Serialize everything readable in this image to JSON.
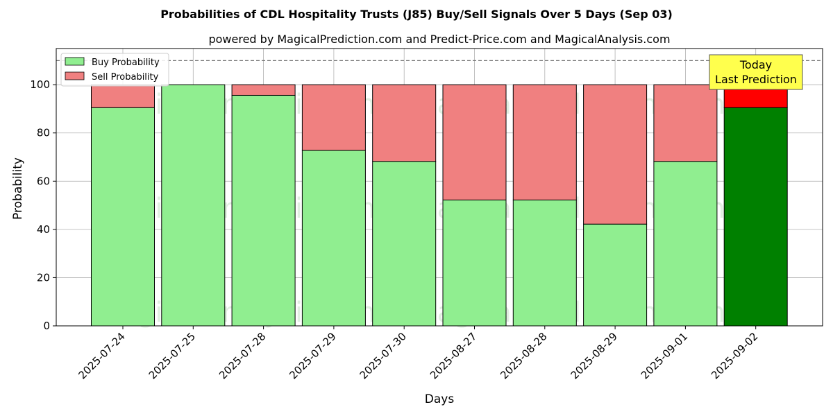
{
  "chart_data": {
    "type": "bar",
    "stacked": true,
    "title": "Probabilities of CDL Hospitality Trusts (J85) Buy/Sell Signals Over 5 Days (Sep 03)",
    "subtitle": "powered by MagicalPrediction.com and Predict-Price.com and MagicalAnalysis.com",
    "xlabel": "Days",
    "ylabel": "Probability",
    "ylim": [
      0,
      115
    ],
    "yticks": [
      0,
      20,
      40,
      60,
      80,
      100
    ],
    "reference_line": 110,
    "grid": true,
    "legend_position": "top-left",
    "categories": [
      "2025-07-24",
      "2025-07-25",
      "2025-07-28",
      "2025-07-29",
      "2025-07-30",
      "2025-08-27",
      "2025-08-28",
      "2025-08-29",
      "2025-09-01",
      "2025-09-02"
    ],
    "series": [
      {
        "name": "Buy Probability",
        "values": [
          90.5,
          100,
          95.6,
          72.8,
          68.2,
          52.2,
          52.2,
          42.2,
          68.2,
          90.5
        ],
        "color": "#90ee90",
        "highlight_color": "#008000"
      },
      {
        "name": "Sell Probability",
        "values": [
          9.5,
          0,
          4.4,
          27.2,
          31.8,
          47.8,
          47.8,
          57.8,
          31.8,
          9.5
        ],
        "color": "#f08080",
        "highlight_color": "#ff0000"
      }
    ],
    "highlight_index": 9,
    "annotation": {
      "line1": "Today",
      "line2": "Last Prediction",
      "box_color": "#ffff4d"
    },
    "watermarks": [
      "MagicalAnalysis.com",
      "MagicalPrediction.com"
    ]
  }
}
